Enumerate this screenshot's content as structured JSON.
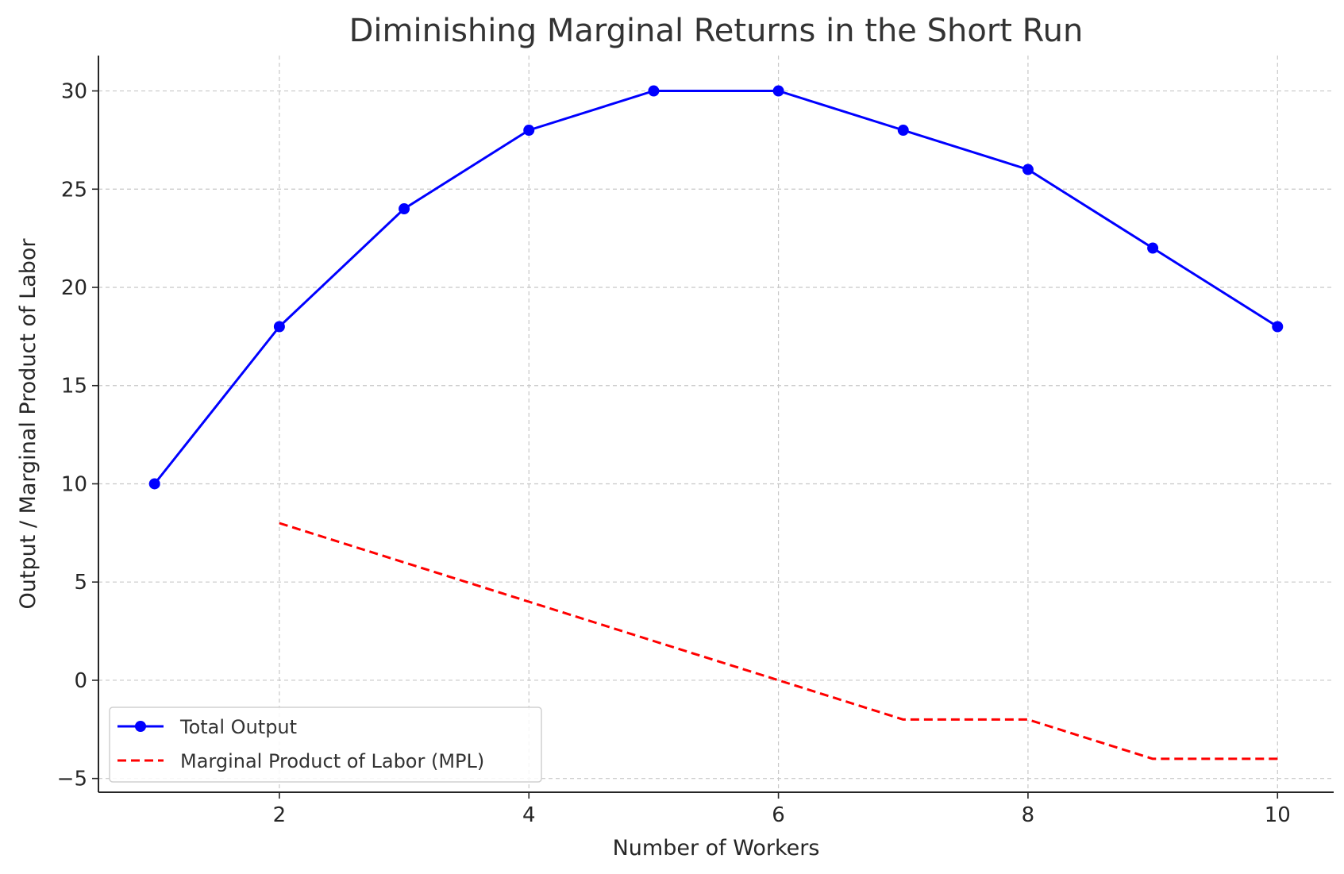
{
  "chart_data": {
    "type": "line",
    "title": "Diminishing Marginal Returns in the Short Run",
    "xlabel": "Number of Workers",
    "ylabel": "Output / Marginal Product of Labor",
    "xlim": [
      0.55,
      10.45
    ],
    "ylim": [
      -5.7,
      31.8
    ],
    "xticks": [
      2,
      4,
      6,
      8,
      10
    ],
    "xtick_labels": [
      "2",
      "4",
      "6",
      "8",
      "10"
    ],
    "yticks": [
      -5,
      0,
      5,
      10,
      15,
      20,
      25,
      30
    ],
    "ytick_labels": [
      "−5",
      "0",
      "5",
      "10",
      "15",
      "20",
      "25",
      "30"
    ],
    "grid": true,
    "legend_position": "lower-left",
    "series": [
      {
        "name": "Total Output",
        "color": "#0000ff",
        "style": "solid",
        "marker": "circle",
        "x": [
          1,
          2,
          3,
          4,
          5,
          6,
          7,
          8,
          9,
          10
        ],
        "values": [
          10,
          18,
          24,
          28,
          30,
          30,
          28,
          26,
          22,
          18
        ]
      },
      {
        "name": "Marginal Product of Labor (MPL)",
        "color": "#ff0000",
        "style": "dashed",
        "marker": "none",
        "x": [
          2,
          3,
          4,
          5,
          6,
          7,
          8,
          9,
          10
        ],
        "values": [
          8,
          6,
          4,
          2,
          0,
          -2,
          -2,
          -4,
          -4
        ]
      }
    ]
  }
}
